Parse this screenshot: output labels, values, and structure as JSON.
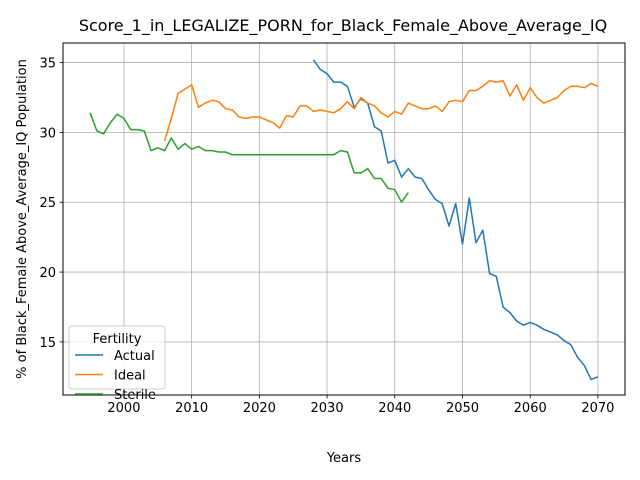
{
  "chart_data": {
    "type": "line",
    "title": "Score_1_in_LEGALIZE_PORN_for_Black_Female_Above_Average_IQ",
    "xlabel": "Years",
    "ylabel": "% of Black_Female Above_Average_IQ Population",
    "xlim": [
      1991,
      2074
    ],
    "ylim": [
      11.2,
      36.4
    ],
    "xticks": [
      2000,
      2010,
      2020,
      2030,
      2040,
      2050,
      2060,
      2070
    ],
    "yticks": [
      15,
      20,
      25,
      30,
      35
    ],
    "grid": true,
    "legend": {
      "title": "Fertility",
      "placement": "lower-left"
    },
    "series": [
      {
        "name": "Actual",
        "color": "#1f77b4",
        "points": [
          [
            2028,
            35.2
          ],
          [
            2029,
            34.5
          ],
          [
            2030,
            34.2
          ],
          [
            2031,
            33.6
          ],
          [
            2032,
            33.6
          ],
          [
            2033,
            33.3
          ],
          [
            2034,
            31.8
          ],
          [
            2035,
            32.4
          ],
          [
            2036,
            32.1
          ],
          [
            2037,
            30.4
          ],
          [
            2038,
            30.1
          ],
          [
            2039,
            27.8
          ],
          [
            2040,
            28.0
          ],
          [
            2041,
            26.8
          ],
          [
            2042,
            27.4
          ],
          [
            2043,
            26.8
          ],
          [
            2044,
            26.7
          ],
          [
            2045,
            25.9
          ],
          [
            2046,
            25.2
          ],
          [
            2047,
            24.9
          ],
          [
            2048,
            23.3
          ],
          [
            2049,
            24.9
          ],
          [
            2050,
            22.0
          ],
          [
            2051,
            25.3
          ],
          [
            2052,
            22.1
          ],
          [
            2053,
            23.0
          ],
          [
            2054,
            19.9
          ],
          [
            2055,
            19.7
          ],
          [
            2056,
            17.5
          ],
          [
            2057,
            17.1
          ],
          [
            2058,
            16.5
          ],
          [
            2059,
            16.2
          ],
          [
            2060,
            16.4
          ],
          [
            2061,
            16.2
          ],
          [
            2062,
            15.9
          ],
          [
            2063,
            15.7
          ],
          [
            2064,
            15.5
          ],
          [
            2065,
            15.1
          ],
          [
            2066,
            14.8
          ],
          [
            2067,
            13.9
          ],
          [
            2068,
            13.3
          ],
          [
            2069,
            12.3
          ],
          [
            2070,
            12.5
          ]
        ]
      },
      {
        "name": "Ideal",
        "color": "#ff7f0e",
        "points": [
          [
            2006,
            29.4
          ],
          [
            2007,
            31.0
          ],
          [
            2008,
            32.8
          ],
          [
            2009,
            33.1
          ],
          [
            2010,
            33.4
          ],
          [
            2011,
            31.8
          ],
          [
            2012,
            32.1
          ],
          [
            2013,
            32.3
          ],
          [
            2014,
            32.2
          ],
          [
            2015,
            31.7
          ],
          [
            2016,
            31.6
          ],
          [
            2017,
            31.1
          ],
          [
            2018,
            31.0
          ],
          [
            2019,
            31.1
          ],
          [
            2020,
            31.1
          ],
          [
            2021,
            30.9
          ],
          [
            2022,
            30.7
          ],
          [
            2023,
            30.3
          ],
          [
            2024,
            31.2
          ],
          [
            2025,
            31.1
          ],
          [
            2026,
            31.9
          ],
          [
            2027,
            31.9
          ],
          [
            2028,
            31.5
          ],
          [
            2029,
            31.6
          ],
          [
            2030,
            31.5
          ],
          [
            2031,
            31.4
          ],
          [
            2032,
            31.7
          ],
          [
            2033,
            32.2
          ],
          [
            2034,
            31.7
          ],
          [
            2035,
            32.5
          ],
          [
            2036,
            32.1
          ],
          [
            2037,
            31.9
          ],
          [
            2038,
            31.4
          ],
          [
            2039,
            31.1
          ],
          [
            2040,
            31.5
          ],
          [
            2041,
            31.3
          ],
          [
            2042,
            32.1
          ],
          [
            2043,
            31.9
          ],
          [
            2044,
            31.7
          ],
          [
            2045,
            31.7
          ],
          [
            2046,
            31.9
          ],
          [
            2047,
            31.5
          ],
          [
            2048,
            32.2
          ],
          [
            2049,
            32.3
          ],
          [
            2050,
            32.2
          ],
          [
            2051,
            33.0
          ],
          [
            2052,
            33.0
          ],
          [
            2053,
            33.3
          ],
          [
            2054,
            33.7
          ],
          [
            2055,
            33.6
          ],
          [
            2056,
            33.7
          ],
          [
            2057,
            32.6
          ],
          [
            2058,
            33.4
          ],
          [
            2059,
            32.3
          ],
          [
            2060,
            33.2
          ],
          [
            2061,
            32.5
          ],
          [
            2062,
            32.1
          ],
          [
            2063,
            32.3
          ],
          [
            2064,
            32.5
          ],
          [
            2065,
            33.0
          ],
          [
            2066,
            33.3
          ],
          [
            2067,
            33.3
          ],
          [
            2068,
            33.2
          ],
          [
            2069,
            33.5
          ],
          [
            2070,
            33.3
          ]
        ]
      },
      {
        "name": "Sterile",
        "color": "#2ca02c",
        "points": [
          [
            1995,
            31.4
          ],
          [
            1996,
            30.1
          ],
          [
            1997,
            29.9
          ],
          [
            1998,
            30.7
          ],
          [
            1999,
            31.3
          ],
          [
            2000,
            31.0
          ],
          [
            2001,
            30.2
          ],
          [
            2002,
            30.2
          ],
          [
            2003,
            30.1
          ],
          [
            2004,
            28.7
          ],
          [
            2005,
            28.9
          ],
          [
            2006,
            28.7
          ],
          [
            2007,
            29.6
          ],
          [
            2008,
            28.8
          ],
          [
            2009,
            29.2
          ],
          [
            2010,
            28.8
          ],
          [
            2011,
            29.0
          ],
          [
            2012,
            28.7
          ],
          [
            2013,
            28.7
          ],
          [
            2014,
            28.6
          ],
          [
            2015,
            28.6
          ],
          [
            2016,
            28.4
          ],
          [
            2017,
            28.4
          ],
          [
            2018,
            28.4
          ],
          [
            2019,
            28.4
          ],
          [
            2020,
            28.4
          ],
          [
            2021,
            28.4
          ],
          [
            2022,
            28.4
          ],
          [
            2023,
            28.4
          ],
          [
            2024,
            28.4
          ],
          [
            2025,
            28.4
          ],
          [
            2026,
            28.4
          ],
          [
            2027,
            28.4
          ],
          [
            2028,
            28.4
          ],
          [
            2029,
            28.4
          ],
          [
            2030,
            28.4
          ],
          [
            2031,
            28.4
          ],
          [
            2032,
            28.7
          ],
          [
            2033,
            28.6
          ],
          [
            2034,
            27.1
          ],
          [
            2035,
            27.1
          ],
          [
            2036,
            27.4
          ],
          [
            2037,
            26.7
          ],
          [
            2038,
            26.7
          ],
          [
            2039,
            26.0
          ],
          [
            2040,
            25.9
          ],
          [
            2041,
            25.0
          ],
          [
            2042,
            25.7
          ]
        ]
      }
    ]
  }
}
